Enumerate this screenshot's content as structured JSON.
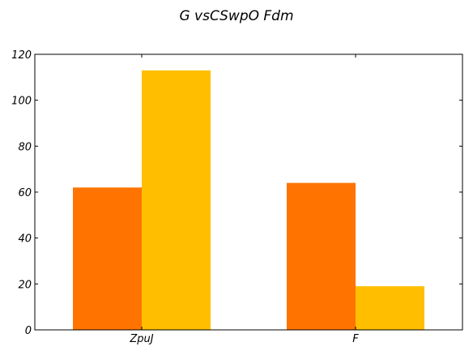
{
  "chart_data": {
    "type": "bar",
    "title": "G vsCSwpO Fdm",
    "categories": [
      "ZpuJ",
      "F"
    ],
    "series": [
      {
        "values": [
          62,
          64
        ],
        "color": "#ff7300"
      },
      {
        "values": [
          113,
          19
        ],
        "color": "#ffbf00"
      }
    ],
    "ylim": [
      0,
      120
    ],
    "yticks": [
      0,
      20,
      40,
      60,
      80,
      100,
      120
    ],
    "grid": false,
    "legend": "none"
  }
}
